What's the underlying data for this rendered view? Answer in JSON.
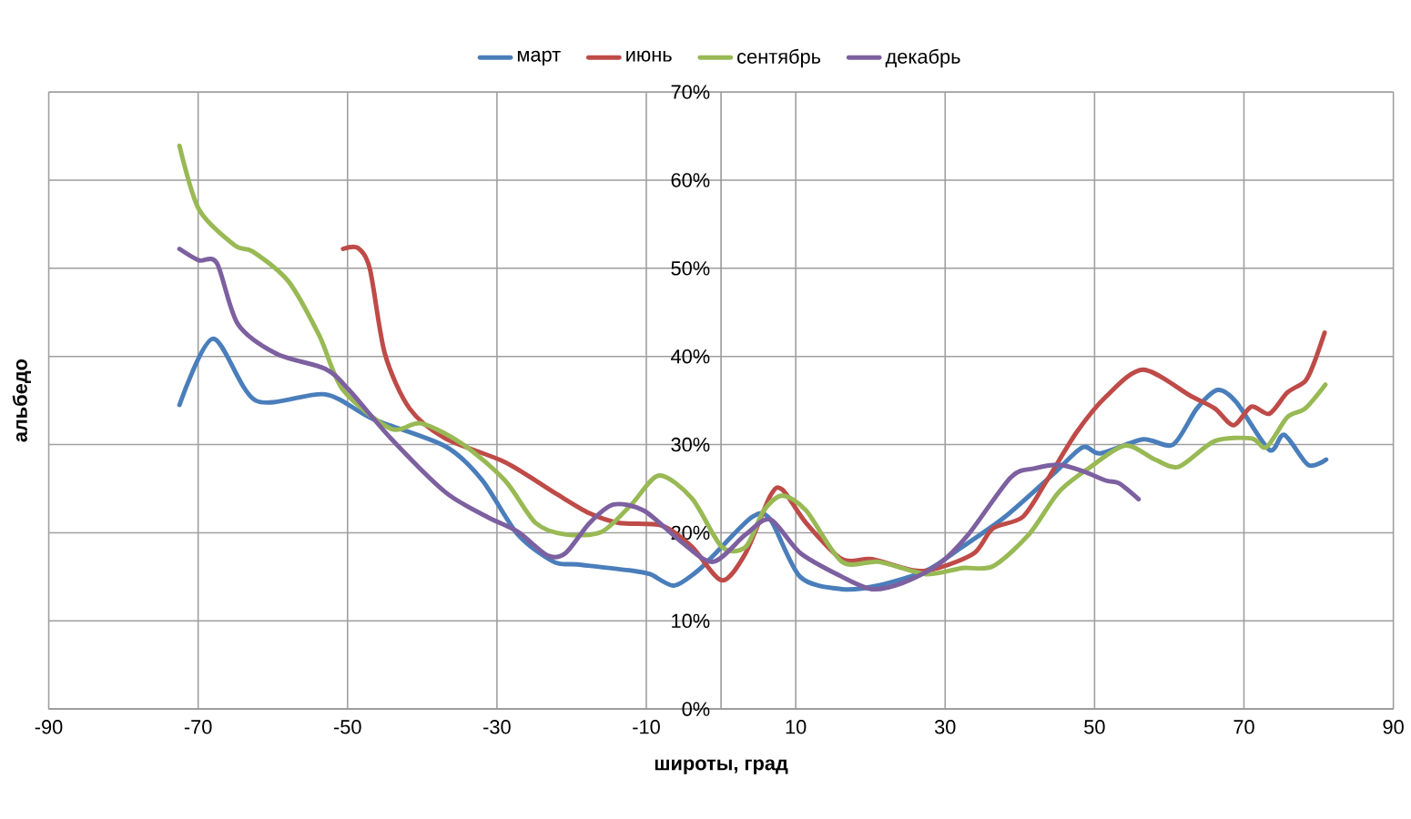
{
  "chart_data": {
    "type": "line",
    "xlabel": "широты, град",
    "ylabel": "альбедо",
    "xlim": [
      -90,
      90
    ],
    "xticks": [
      -90,
      -70,
      -50,
      -30,
      -10,
      10,
      30,
      50,
      70,
      90
    ],
    "ylim": [
      0,
      70
    ],
    "yticks": [
      {
        "value": 0,
        "label": "0%"
      },
      {
        "value": 10,
        "label": "10%"
      },
      {
        "value": 20,
        "label": "20%"
      },
      {
        "value": 30,
        "label": "30%"
      },
      {
        "value": 40,
        "label": "40%"
      },
      {
        "value": 50,
        "label": "50%"
      },
      {
        "value": 60,
        "label": "60%"
      },
      {
        "value": 70,
        "label": "70%"
      }
    ],
    "grid": true,
    "legend": "top",
    "marker": "none",
    "line_style": "solid",
    "series": [
      {
        "name": "март",
        "color": "#4a7ebb",
        "x": [
          -72.5,
          -68,
          -62.3,
          -53,
          -46.6,
          -36.9,
          -32,
          -27.2,
          -22.4,
          -19.2,
          -12,
          -9.5,
          -6.3,
          -3.1,
          -0.7,
          4.2,
          6.6,
          10.6,
          16.2,
          21,
          27.5,
          32.3,
          38,
          44.4,
          48.4,
          50.8,
          56.5,
          60.5,
          63.7,
          66.5,
          69,
          73.4,
          75.4,
          78.6,
          81
        ],
        "values": [
          34.5,
          42,
          35,
          35.7,
          32.9,
          29.8,
          26,
          19.8,
          16.7,
          16.4,
          15.7,
          15.3,
          14,
          15.7,
          17.7,
          21.8,
          21.5,
          15,
          13.6,
          14,
          15.7,
          18.4,
          21.8,
          26.6,
          29.7,
          29,
          30.6,
          30,
          34.1,
          36.2,
          34.8,
          29.4,
          31.1,
          27.7,
          28.3
        ]
      },
      {
        "name": "июнь",
        "color": "#be4b48",
        "x": [
          -50.6,
          -48.6,
          -47,
          -45,
          -41.7,
          -36.9,
          -28.9,
          -22.4,
          -17.6,
          -13.6,
          -7.9,
          -3.9,
          0.1,
          3.3,
          6.6,
          8.2,
          11.4,
          16.2,
          20.2,
          25.9,
          29.1,
          33.9,
          36.4,
          40.4,
          43.6,
          47.6,
          51.6,
          56.5,
          62.9,
          66.1,
          68.6,
          71,
          73.4,
          75.8,
          78.2,
          79.4,
          80.8
        ],
        "values": [
          52.2,
          52.3,
          49.9,
          40.3,
          34.1,
          30.7,
          28,
          24.6,
          22.2,
          21.1,
          20.8,
          18.4,
          14.6,
          17.7,
          24.2,
          24.9,
          21.1,
          17,
          17,
          15.7,
          16,
          17.7,
          20.5,
          21.8,
          25.9,
          31.4,
          35.5,
          38.5,
          35.5,
          34.1,
          32.2,
          34.3,
          33.5,
          35.9,
          37.2,
          39.3,
          42.7
        ]
      },
      {
        "name": "сентябрь",
        "color": "#98b954",
        "x": [
          -72.5,
          -69.9,
          -65.1,
          -62.7,
          -57.9,
          -53.8,
          -50.6,
          -44.2,
          -40.1,
          -34.5,
          -28.9,
          -24.8,
          -20.8,
          -16,
          -12,
          -8.3,
          -3.9,
          0.1,
          3.3,
          5.7,
          8.2,
          11.4,
          16.2,
          21.1,
          27.5,
          32.3,
          36.4,
          41.2,
          45.2,
          49.2,
          54.1,
          58.1,
          61.3,
          66.1,
          71,
          73,
          75.8,
          78.2,
          80.9
        ],
        "values": [
          63.9,
          56.7,
          52.6,
          51.9,
          48.5,
          42.4,
          36.2,
          31.8,
          32.4,
          30,
          25.9,
          21.1,
          19.8,
          20.1,
          23.2,
          26.5,
          23.9,
          18.4,
          18.4,
          22.5,
          24.2,
          22.5,
          16.7,
          16.7,
          15.3,
          16,
          16.2,
          19.8,
          24.6,
          27.3,
          29.9,
          28.3,
          27.5,
          30.4,
          30.7,
          29.7,
          33.1,
          34.1,
          36.8
        ]
      },
      {
        "name": "декабрь",
        "color": "#7d60a0",
        "x": [
          -72.5,
          -69.9,
          -67.5,
          -64.7,
          -59.5,
          -53,
          -49.8,
          -44.2,
          -36.9,
          -31.3,
          -27.2,
          -23.2,
          -20.8,
          -17.6,
          -14.4,
          -10.3,
          -5.5,
          -1.1,
          3.3,
          6.6,
          10.6,
          16.2,
          20.2,
          24.3,
          29.1,
          33.1,
          38.8,
          42,
          45.2,
          48.4,
          51.6,
          53.3,
          55.9
        ],
        "values": [
          52.2,
          50.9,
          50.6,
          43.7,
          40.3,
          38.6,
          36.2,
          30.7,
          24.6,
          21.8,
          20.1,
          17.4,
          17.7,
          21.1,
          23.2,
          22.5,
          19.1,
          16.7,
          19.8,
          21.5,
          17.7,
          15,
          13.6,
          14.3,
          16.4,
          19.8,
          26.3,
          27.3,
          27.7,
          27,
          25.9,
          25.6,
          23.8
        ]
      }
    ]
  }
}
